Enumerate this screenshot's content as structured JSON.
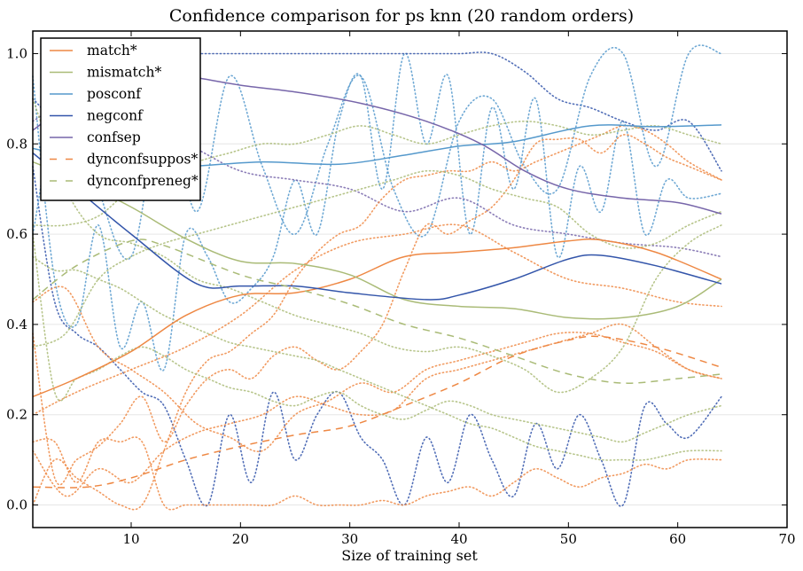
{
  "chart_data": {
    "type": "line",
    "title": "Confidence comparison for ps knn (20 random orders)",
    "xlabel": "Size of training set",
    "ylabel": "",
    "xlim": [
      1,
      70
    ],
    "ylim": [
      -0.05,
      1.05
    ],
    "xticks": [
      10,
      20,
      30,
      40,
      50,
      60,
      70
    ],
    "xtick_labels": [
      "10",
      "20",
      "30",
      "40",
      "50",
      "60",
      "70"
    ],
    "yticks": [
      0.0,
      0.2,
      0.4,
      0.6,
      0.8,
      1.0
    ],
    "ytick_labels": [
      "0.0",
      "0.2",
      "0.4",
      "0.6",
      "0.8",
      "1.0"
    ],
    "grid": "horizontal",
    "legend_position": "top-left",
    "series": [
      {
        "name": "match*",
        "color": "#ee8844",
        "style": "solid",
        "x": [
          1,
          5,
          10,
          15,
          20,
          25,
          30,
          35,
          40,
          45,
          50,
          53,
          58,
          64
        ],
        "values": [
          0.24,
          0.28,
          0.34,
          0.42,
          0.465,
          0.47,
          0.5,
          0.55,
          0.56,
          0.57,
          0.585,
          0.587,
          0.56,
          0.5
        ]
      },
      {
        "name": "mismatch*",
        "color": "#aabb77",
        "style": "solid",
        "x": [
          1,
          5,
          10,
          15,
          20,
          25,
          30,
          35,
          40,
          45,
          50,
          55,
          60,
          64
        ],
        "values": [
          0.76,
          0.72,
          0.66,
          0.59,
          0.54,
          0.535,
          0.51,
          0.455,
          0.44,
          0.435,
          0.415,
          0.415,
          0.44,
          0.5
        ]
      },
      {
        "name": "posconf",
        "color": "#5599cc",
        "style": "solid",
        "x": [
          1,
          5,
          10,
          15,
          22,
          29,
          35,
          40,
          45,
          52,
          58,
          64
        ],
        "values": [
          0.79,
          0.77,
          0.755,
          0.75,
          0.76,
          0.755,
          0.775,
          0.795,
          0.805,
          0.84,
          0.838,
          0.842
        ]
      },
      {
        "name": "negconf",
        "color": "#3355aa",
        "style": "solid",
        "x": [
          1,
          5,
          10,
          16,
          20,
          25,
          30,
          37,
          40,
          45,
          50,
          53,
          58,
          64
        ],
        "values": [
          0.78,
          0.7,
          0.6,
          0.49,
          0.485,
          0.485,
          0.47,
          0.455,
          0.465,
          0.5,
          0.545,
          0.553,
          0.53,
          0.49
        ]
      },
      {
        "name": "confsep",
        "color": "#7766aa",
        "style": "solid",
        "x": [
          1,
          5,
          10,
          15,
          20,
          25,
          31,
          37,
          42,
          46,
          50,
          55,
          60,
          64
        ],
        "values": [
          0.83,
          0.9,
          0.96,
          0.95,
          0.93,
          0.915,
          0.89,
          0.85,
          0.8,
          0.74,
          0.7,
          0.68,
          0.67,
          0.645
        ]
      },
      {
        "name": "dynconfsuppos*",
        "color": "#ee8844",
        "style": "dashed",
        "x": [
          1,
          6,
          10,
          15,
          20,
          25,
          30,
          35,
          40,
          45,
          50,
          53,
          58,
          64
        ],
        "values": [
          0.04,
          0.04,
          0.06,
          0.1,
          0.13,
          0.155,
          0.175,
          0.22,
          0.27,
          0.33,
          0.365,
          0.373,
          0.35,
          0.305
        ]
      },
      {
        "name": "dynconfpreneg*",
        "color": "#aabb77",
        "style": "dashed",
        "x": [
          1,
          5,
          10,
          13,
          20,
          25,
          30,
          35,
          40,
          45,
          50,
          55,
          60,
          64
        ],
        "values": [
          0.455,
          0.53,
          0.585,
          0.575,
          0.51,
          0.48,
          0.445,
          0.4,
          0.37,
          0.33,
          0.29,
          0.27,
          0.28,
          0.29
        ]
      }
    ],
    "background_traces": [
      {
        "color": "#5599cc",
        "style": "dotted",
        "x": [
          1,
          3,
          5,
          7,
          9,
          11,
          13,
          15,
          17,
          19,
          21,
          23,
          25,
          27,
          29,
          31,
          33,
          35,
          37,
          39,
          41,
          43,
          45,
          47,
          49,
          51,
          53,
          55,
          57,
          59,
          61,
          64
        ],
        "values": [
          0.95,
          0.5,
          0.4,
          0.62,
          0.35,
          0.45,
          0.3,
          0.6,
          0.55,
          0.45,
          0.48,
          0.55,
          0.72,
          0.6,
          0.85,
          0.95,
          0.7,
          1.0,
          0.8,
          0.95,
          0.6,
          0.88,
          0.7,
          0.9,
          0.55,
          0.75,
          0.65,
          0.85,
          0.6,
          0.72,
          0.68,
          0.69
        ]
      },
      {
        "color": "#3355aa",
        "style": "dotted",
        "x": [
          1,
          3,
          5,
          7,
          9,
          11,
          13,
          15,
          17,
          19,
          21,
          23,
          25,
          27,
          29,
          31,
          33,
          35,
          37,
          39,
          41,
          43,
          45,
          47,
          49,
          51,
          53,
          55,
          57,
          59,
          61,
          64
        ],
        "values": [
          0.75,
          0.45,
          0.38,
          0.35,
          0.3,
          0.25,
          0.22,
          0.1,
          0.0,
          0.2,
          0.05,
          0.25,
          0.1,
          0.2,
          0.25,
          0.15,
          0.1,
          0.0,
          0.15,
          0.05,
          0.2,
          0.1,
          0.02,
          0.18,
          0.08,
          0.2,
          0.1,
          0.0,
          0.22,
          0.18,
          0.15,
          0.24
        ]
      },
      {
        "color": "#3355aa",
        "style": "dotted",
        "x": [
          1,
          4,
          7,
          10,
          13,
          16,
          19,
          22,
          25,
          28,
          31,
          34,
          37,
          40,
          43,
          46,
          49,
          52,
          55,
          58,
          61,
          64
        ],
        "values": [
          0.9,
          0.85,
          1.0,
          1.0,
          1.0,
          1.0,
          1.0,
          1.0,
          1.0,
          1.0,
          1.0,
          1.0,
          1.0,
          1.0,
          1.0,
          0.96,
          0.9,
          0.88,
          0.85,
          0.83,
          0.85,
          0.74
        ]
      },
      {
        "color": "#5599cc",
        "style": "dotted",
        "x": [
          1,
          4,
          7,
          10,
          13,
          16,
          19,
          22,
          25,
          28,
          31,
          34,
          37,
          40,
          43,
          46,
          49,
          52,
          55,
          58,
          61,
          64
        ],
        "values": [
          0.6,
          0.95,
          0.7,
          0.55,
          0.9,
          0.65,
          0.95,
          0.75,
          0.6,
          0.8,
          0.95,
          0.7,
          0.6,
          0.85,
          0.9,
          0.75,
          0.7,
          0.95,
          1.0,
          0.75,
          1.0,
          1.0
        ]
      },
      {
        "color": "#7766aa",
        "style": "dotted",
        "x": [
          1,
          5,
          10,
          15,
          20,
          25,
          30,
          35,
          40,
          45,
          50,
          55,
          60,
          64
        ],
        "values": [
          0.85,
          0.9,
          0.84,
          0.8,
          0.74,
          0.72,
          0.7,
          0.65,
          0.68,
          0.62,
          0.6,
          0.58,
          0.57,
          0.55
        ]
      },
      {
        "color": "#ee8844",
        "style": "dotted",
        "x": [
          1,
          3,
          5,
          7,
          9,
          11,
          13,
          15,
          17,
          19,
          21,
          23,
          25,
          27,
          29,
          31,
          33,
          35,
          37,
          39,
          41,
          43,
          45,
          47,
          49,
          51,
          53,
          55,
          57,
          59,
          61,
          64
        ],
        "values": [
          0.14,
          0.14,
          0.05,
          0.14,
          0.14,
          0.14,
          0.0,
          0.0,
          0.0,
          0.0,
          0.0,
          0.0,
          0.02,
          0.0,
          0.0,
          0.0,
          0.01,
          0.0,
          0.02,
          0.03,
          0.04,
          0.02,
          0.05,
          0.08,
          0.06,
          0.04,
          0.06,
          0.07,
          0.09,
          0.08,
          0.1,
          0.1
        ]
      },
      {
        "color": "#ee8844",
        "style": "dotted",
        "x": [
          1,
          3,
          5,
          7,
          9,
          11,
          13,
          15,
          17,
          19,
          21,
          23,
          25,
          27,
          29,
          31,
          33,
          35,
          37,
          39,
          41,
          43,
          45,
          47,
          49,
          51,
          53,
          55,
          57,
          59,
          61,
          64
        ],
        "values": [
          0.0,
          0.1,
          0.06,
          0.03,
          0.0,
          0.0,
          0.12,
          0.25,
          0.32,
          0.34,
          0.38,
          0.42,
          0.5,
          0.56,
          0.6,
          0.62,
          0.68,
          0.72,
          0.73,
          0.74,
          0.74,
          0.76,
          0.74,
          0.76,
          0.78,
          0.8,
          0.82,
          0.84,
          0.83,
          0.8,
          0.76,
          0.72
        ]
      },
      {
        "color": "#ee8844",
        "style": "dotted",
        "x": [
          1,
          3,
          5,
          7,
          9,
          11,
          13,
          15,
          17,
          19,
          21,
          23,
          25,
          27,
          29,
          31,
          33,
          35,
          37,
          39,
          41,
          43,
          45,
          47,
          49,
          51,
          53,
          55,
          57,
          59,
          61,
          64
        ],
        "values": [
          0.38,
          0.06,
          0.1,
          0.13,
          0.18,
          0.24,
          0.14,
          0.22,
          0.28,
          0.3,
          0.28,
          0.33,
          0.35,
          0.32,
          0.3,
          0.34,
          0.4,
          0.52,
          0.62,
          0.6,
          0.63,
          0.66,
          0.72,
          0.8,
          0.81,
          0.81,
          0.78,
          0.82,
          0.8,
          0.77,
          0.75,
          0.72
        ]
      },
      {
        "color": "#ee8844",
        "style": "dotted",
        "x": [
          1,
          4,
          7,
          10,
          13,
          16,
          19,
          22,
          25,
          28,
          31,
          34,
          37,
          40,
          43,
          46,
          49,
          52,
          55,
          58,
          61,
          64
        ],
        "values": [
          0.12,
          0.02,
          0.08,
          0.05,
          0.12,
          0.16,
          0.18,
          0.2,
          0.24,
          0.22,
          0.2,
          0.21,
          0.28,
          0.3,
          0.32,
          0.34,
          0.36,
          0.38,
          0.4,
          0.35,
          0.3,
          0.28
        ]
      },
      {
        "color": "#ee8844",
        "style": "dotted",
        "x": [
          1,
          4,
          7,
          10,
          13,
          16,
          19,
          22,
          25,
          28,
          31,
          34,
          37,
          40,
          43,
          46,
          49,
          52,
          55,
          58,
          61,
          64
        ],
        "values": [
          0.45,
          0.48,
          0.35,
          0.3,
          0.25,
          0.18,
          0.15,
          0.12,
          0.2,
          0.23,
          0.27,
          0.25,
          0.3,
          0.32,
          0.34,
          0.36,
          0.38,
          0.38,
          0.36,
          0.34,
          0.3,
          0.28
        ]
      },
      {
        "color": "#ee8844",
        "style": "dotted",
        "x": [
          1,
          5,
          10,
          15,
          20,
          25,
          30,
          35,
          40,
          45,
          50,
          55,
          60,
          64
        ],
        "values": [
          0.2,
          0.25,
          0.3,
          0.35,
          0.42,
          0.52,
          0.58,
          0.6,
          0.62,
          0.56,
          0.5,
          0.48,
          0.45,
          0.44
        ]
      },
      {
        "color": "#aabb77",
        "style": "dotted",
        "x": [
          1,
          3,
          5,
          7,
          9,
          11,
          13,
          15,
          17,
          19,
          21,
          23,
          25,
          27,
          29,
          31,
          33,
          35,
          37,
          39,
          41,
          43,
          45,
          47,
          49,
          51,
          53,
          55,
          57,
          59,
          61,
          64
        ],
        "values": [
          0.6,
          0.25,
          0.28,
          0.3,
          0.33,
          0.35,
          0.33,
          0.3,
          0.28,
          0.26,
          0.25,
          0.23,
          0.22,
          0.24,
          0.25,
          0.22,
          0.2,
          0.19,
          0.21,
          0.23,
          0.22,
          0.2,
          0.19,
          0.18,
          0.17,
          0.16,
          0.15,
          0.14,
          0.16,
          0.18,
          0.2,
          0.22
        ]
      },
      {
        "color": "#aabb77",
        "style": "dotted",
        "x": [
          1,
          3,
          5,
          7,
          9,
          11,
          13,
          15,
          17,
          19,
          21,
          23,
          25,
          27,
          29,
          31,
          33,
          35,
          37,
          39,
          41,
          43,
          45,
          47,
          49,
          51,
          53,
          55,
          57,
          59,
          61,
          64
        ],
        "values": [
          0.55,
          0.52,
          0.52,
          0.5,
          0.48,
          0.45,
          0.42,
          0.4,
          0.38,
          0.36,
          0.35,
          0.34,
          0.33,
          0.32,
          0.3,
          0.28,
          0.26,
          0.24,
          0.22,
          0.2,
          0.18,
          0.17,
          0.15,
          0.13,
          0.12,
          0.11,
          0.1,
          0.1,
          0.1,
          0.11,
          0.12,
          0.12
        ]
      },
      {
        "color": "#aabb77",
        "style": "dotted",
        "x": [
          1,
          4,
          7,
          10,
          13,
          16,
          19,
          22,
          25,
          28,
          31,
          34,
          37,
          40,
          43,
          46,
          49,
          52,
          55,
          58,
          61,
          64
        ],
        "values": [
          0.9,
          0.7,
          0.6,
          0.58,
          0.55,
          0.5,
          0.48,
          0.45,
          0.42,
          0.4,
          0.38,
          0.35,
          0.34,
          0.35,
          0.33,
          0.3,
          0.25,
          0.28,
          0.35,
          0.5,
          0.58,
          0.62
        ]
      },
      {
        "color": "#aabb77",
        "style": "dotted",
        "x": [
          1,
          4,
          7,
          10,
          13,
          16,
          19,
          22,
          25,
          28,
          31,
          34,
          37,
          40,
          43,
          46,
          49,
          52,
          55,
          58,
          61,
          64
        ],
        "values": [
          0.62,
          0.62,
          0.64,
          0.7,
          0.73,
          0.76,
          0.78,
          0.8,
          0.8,
          0.82,
          0.84,
          0.82,
          0.8,
          0.82,
          0.84,
          0.85,
          0.84,
          0.82,
          0.83,
          0.84,
          0.82,
          0.8
        ]
      },
      {
        "color": "#aabb77",
        "style": "dotted",
        "x": [
          1,
          4,
          7,
          10,
          13,
          16,
          19,
          22,
          25,
          28,
          31,
          34,
          37,
          40,
          43,
          46,
          49,
          52,
          55,
          58,
          61,
          64
        ],
        "values": [
          0.35,
          0.38,
          0.5,
          0.55,
          0.58,
          0.6,
          0.62,
          0.64,
          0.66,
          0.68,
          0.7,
          0.72,
          0.74,
          0.73,
          0.7,
          0.68,
          0.66,
          0.6,
          0.57,
          0.58,
          0.62,
          0.65
        ]
      }
    ]
  }
}
